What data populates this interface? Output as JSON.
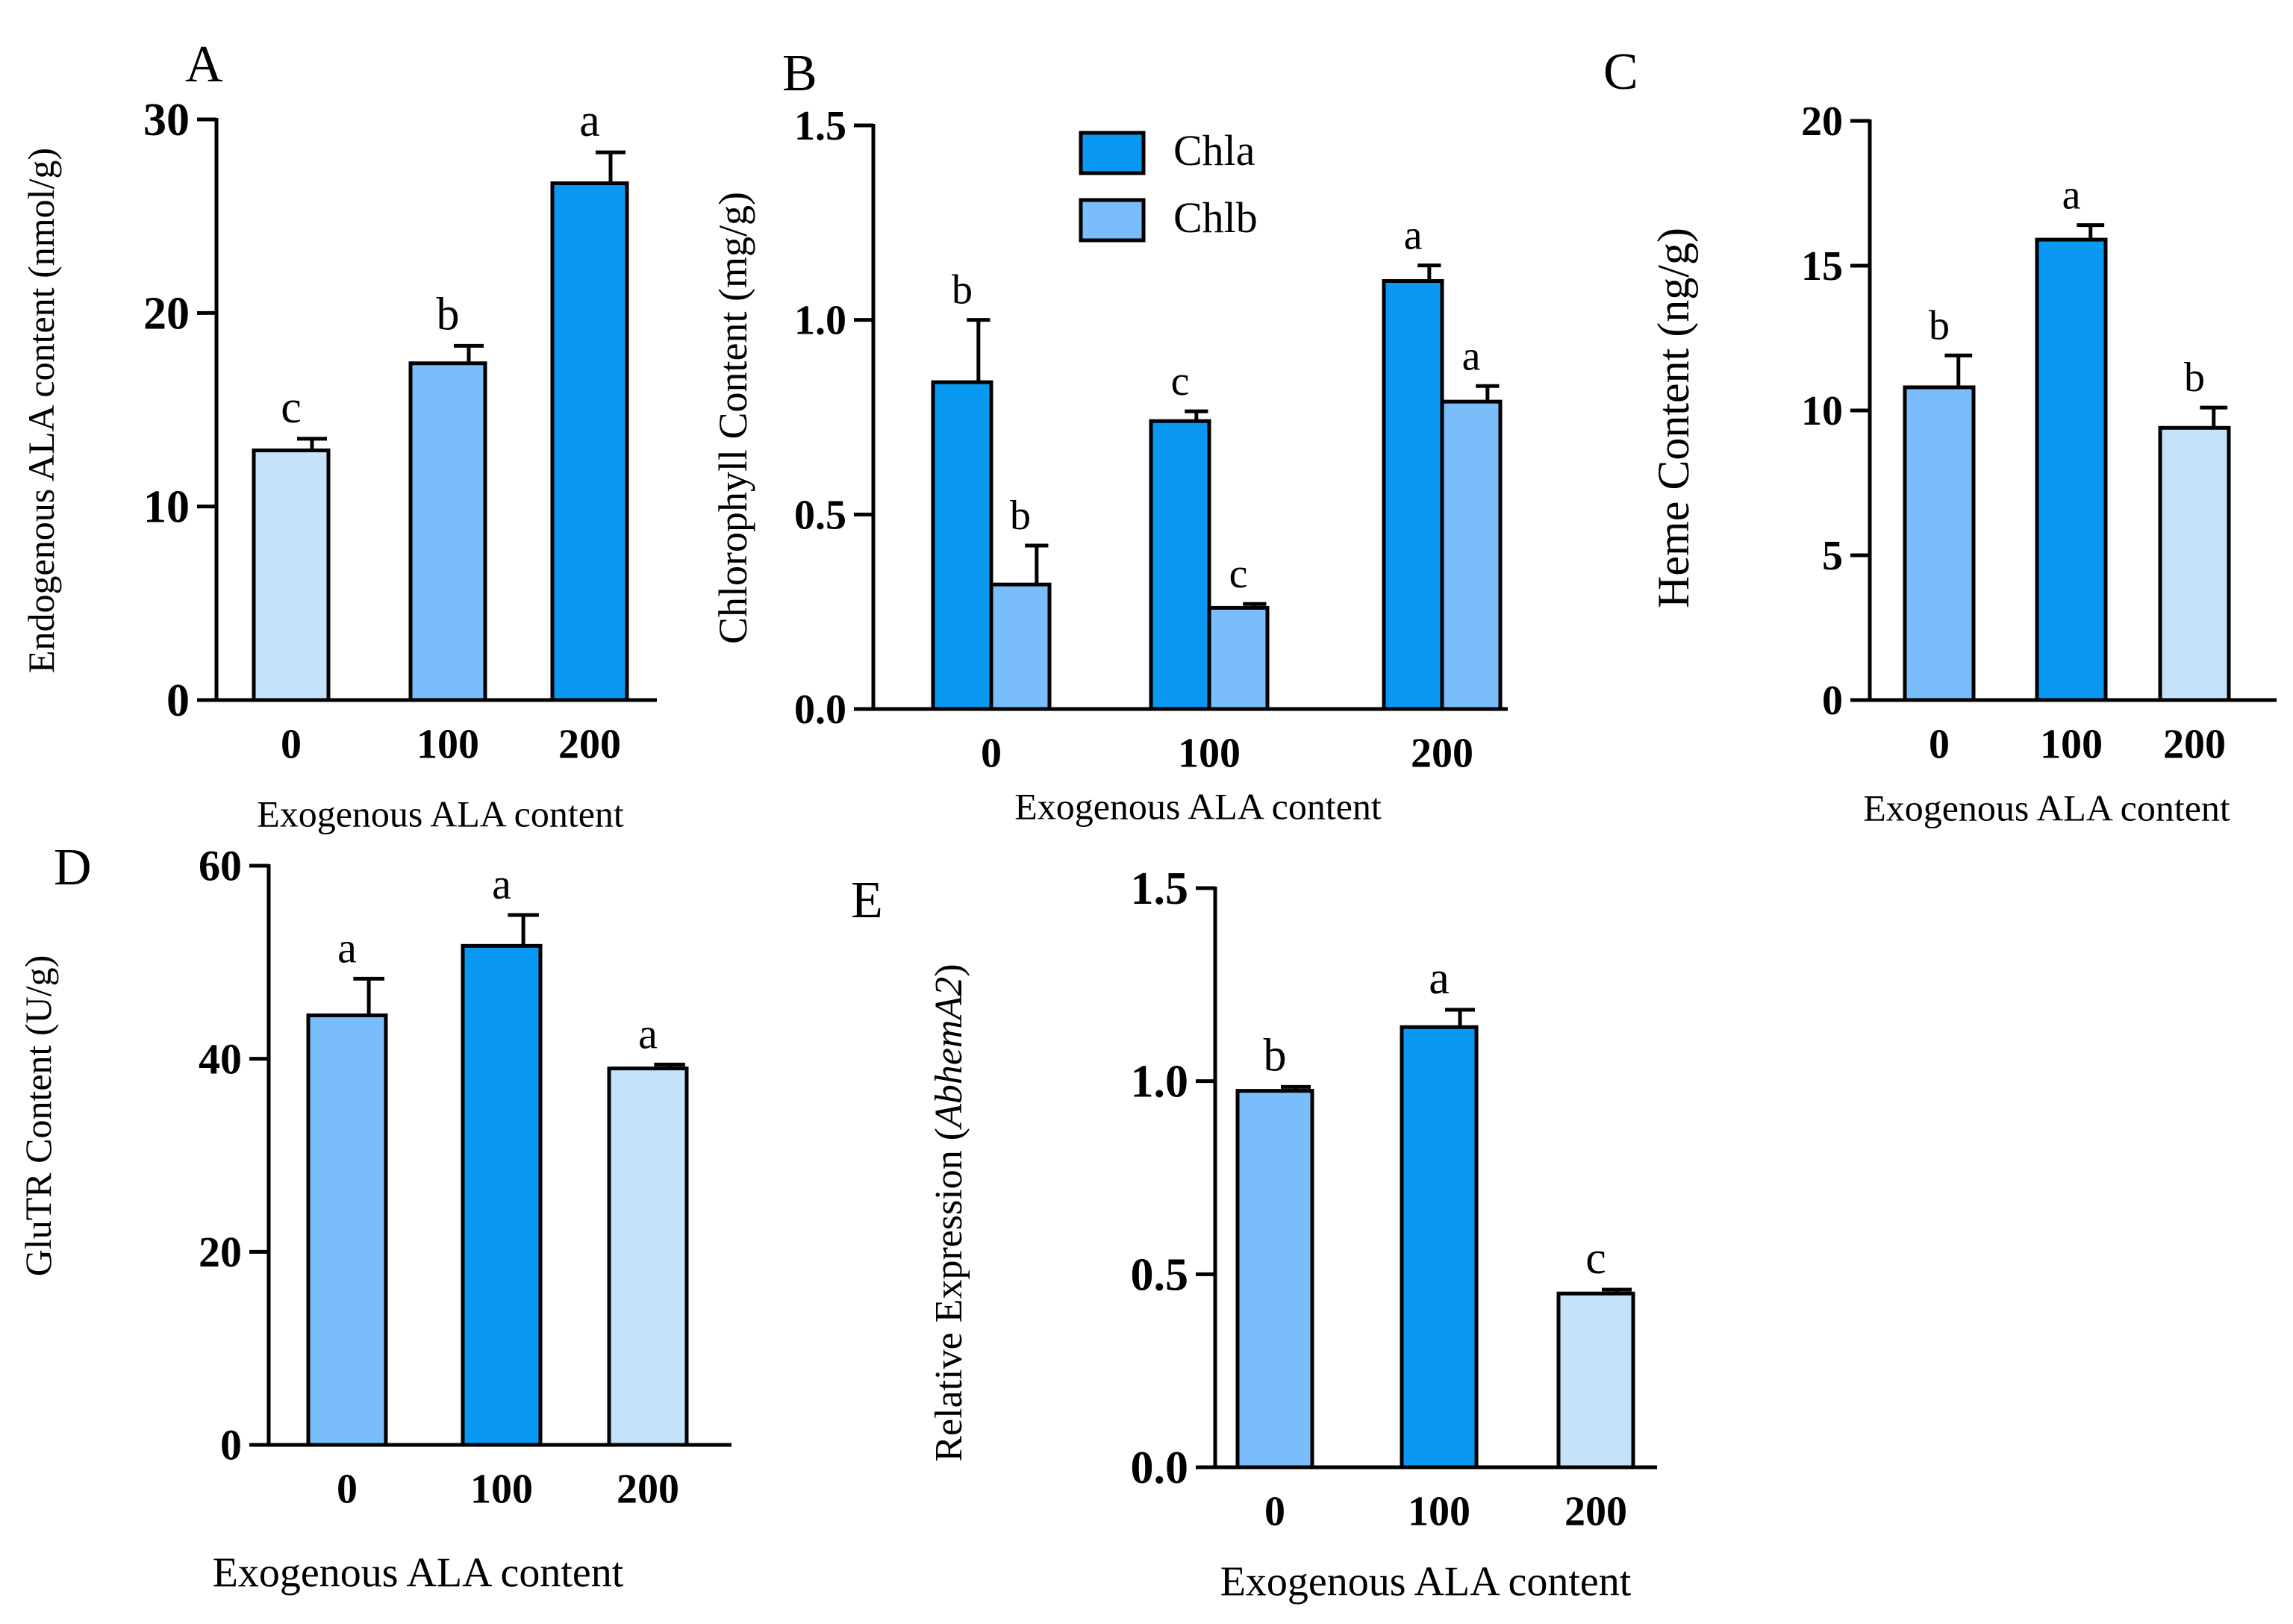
{
  "chart_data": [
    {
      "panel": "A",
      "type": "bar",
      "categories": [
        "0",
        "100",
        "200"
      ],
      "series": [
        {
          "values": [
            12.9,
            17.4,
            26.7
          ],
          "errors": [
            0.6,
            0.9,
            1.6
          ],
          "colors": [
            "#c5e2fb",
            "#79bdfa",
            "#0a99f2"
          ]
        }
      ],
      "letters": [
        "c",
        "b",
        "a"
      ],
      "ylabel": "Endogenous ALA content (nmol/g)",
      "xlabel": "Exogenous ALA content",
      "ylim": [
        0,
        30
      ],
      "yticks": [
        "0",
        "10",
        "20",
        "30"
      ]
    },
    {
      "panel": "B",
      "type": "bar",
      "categories": [
        "0",
        "100",
        "200"
      ],
      "series": [
        {
          "name": "Chla",
          "values": [
            0.84,
            0.74,
            1.1
          ],
          "errors": [
            0.16,
            0.025,
            0.04
          ],
          "color": "#0a99f2",
          "letters": [
            "b",
            "c",
            "a"
          ]
        },
        {
          "name": "Chlb",
          "values": [
            0.32,
            0.26,
            0.79
          ],
          "errors": [
            0.1,
            0.01,
            0.04
          ],
          "color": "#79bdfa",
          "letters": [
            "b",
            "c",
            "a"
          ]
        }
      ],
      "ylabel": "Chlorophyll Content (mg/g)",
      "xlabel": "Exogenous ALA content",
      "ylim": [
        0,
        1.5
      ],
      "yticks": [
        "0.0",
        "0.5",
        "1.0",
        "1.5"
      ],
      "legend": "top-center"
    },
    {
      "panel": "C",
      "type": "bar",
      "categories": [
        "0",
        "100",
        "200"
      ],
      "series": [
        {
          "values": [
            10.8,
            15.9,
            9.4
          ],
          "errors": [
            1.1,
            0.5,
            0.7
          ],
          "colors": [
            "#79bdfa",
            "#0a99f2",
            "#c5e2fb"
          ]
        }
      ],
      "letters": [
        "b",
        "a",
        "b"
      ],
      "ylabel": "Heme Content (ng/g)",
      "xlabel": "Exogenous ALA content",
      "ylim": [
        0,
        20
      ],
      "yticks": [
        "0",
        "5",
        "10",
        "15",
        "20"
      ]
    },
    {
      "panel": "D",
      "type": "bar",
      "categories": [
        "0",
        "100",
        "200"
      ],
      "series": [
        {
          "values": [
            44.5,
            51.7,
            39.0
          ],
          "errors": [
            3.8,
            3.2,
            0.4
          ],
          "colors": [
            "#79bdfa",
            "#0a99f2",
            "#c5e2fb"
          ]
        }
      ],
      "letters": [
        "a",
        "a",
        "a"
      ],
      "ylabel": "GluTR Content (U/g)",
      "xlabel": "Exogenous ALA content",
      "ylim": [
        0,
        60
      ],
      "yticks": [
        "0",
        "20",
        "40",
        "60"
      ]
    },
    {
      "panel": "E",
      "type": "bar",
      "categories": [
        "0",
        "100",
        "200"
      ],
      "series": [
        {
          "values": [
            0.975,
            1.14,
            0.45
          ],
          "errors": [
            0.01,
            0.045,
            0.01
          ],
          "colors": [
            "#79bdfa",
            "#0a99f2",
            "#c5e2fb"
          ]
        }
      ],
      "letters": [
        "b",
        "a",
        "c"
      ],
      "ylabel": "Relative Expression (",
      "ylabel_italic": "AbhemA2",
      "ylabel_suffix": ")",
      "xlabel": "Exogenous ALA content",
      "ylim": [
        0,
        1.5
      ],
      "yticks": [
        "0.0",
        "0.5",
        "1.0",
        "1.5"
      ]
    }
  ]
}
